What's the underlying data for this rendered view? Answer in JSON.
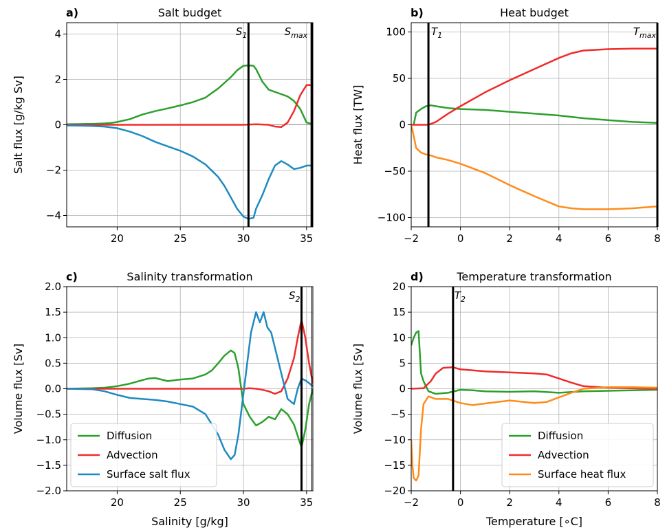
{
  "figure": {
    "panels": [
      {
        "letter": "a)",
        "title": "Salt budget",
        "ylabel": "Salt flux [g/kg Sv]",
        "xlabel": "",
        "vline_labels": [
          "S1",
          "Smax"
        ]
      },
      {
        "letter": "b)",
        "title": "Heat budget",
        "ylabel": "Heat flux [TW]",
        "xlabel": "",
        "vline_labels": [
          "T1",
          "Tmax"
        ]
      },
      {
        "letter": "c)",
        "title": "Salinity transformation",
        "ylabel": "Volume flux [Sv]",
        "xlabel": "Salinity [g/kg]",
        "vline_labels": [
          "S2"
        ]
      },
      {
        "letter": "d)",
        "title": "Temperature transformation",
        "ylabel": "Volume flux [Sv]",
        "xlabel": "Temperature [∘C]",
        "vline_labels": [
          "T2"
        ]
      }
    ]
  },
  "chart_data": [
    {
      "type": "line",
      "title": "Salt budget",
      "xlabel": "",
      "ylabel": "Salt flux [g/kg Sv]",
      "xlim": [
        16,
        35.5
      ],
      "ylim": [
        -4.5,
        4.5
      ],
      "xticks": [
        20,
        25,
        30,
        35
      ],
      "yticks": [
        -4,
        -2,
        0,
        2,
        4
      ],
      "grid": true,
      "vlines": [
        {
          "x": 30.4,
          "label": "S1"
        },
        {
          "x": 35.4,
          "label": "Smax"
        }
      ],
      "series": [
        {
          "name": "Diffusion",
          "color": "#2ca02c",
          "x": [
            16,
            17,
            18,
            19,
            19.5,
            20,
            21,
            22,
            23,
            24,
            25,
            26,
            27,
            28,
            28.5,
            29,
            29.5,
            30,
            30.4,
            30.8,
            31,
            31.5,
            32,
            33,
            33.5,
            34,
            34.5,
            35,
            35.5
          ],
          "y": [
            0.02,
            0.03,
            0.04,
            0.06,
            0.08,
            0.12,
            0.25,
            0.45,
            0.6,
            0.72,
            0.85,
            1.0,
            1.2,
            1.6,
            1.85,
            2.1,
            2.4,
            2.6,
            2.62,
            2.6,
            2.45,
            1.9,
            1.55,
            1.35,
            1.25,
            1.05,
            0.7,
            0.1,
            0.02
          ]
        },
        {
          "name": "Advection",
          "color": "#ef2b2b",
          "x": [
            16,
            20,
            25,
            30,
            31,
            32,
            32.5,
            33,
            33.5,
            34,
            34.5,
            35,
            35.5
          ],
          "y": [
            0,
            0,
            0,
            0,
            0.02,
            0,
            -0.08,
            -0.1,
            0.1,
            0.6,
            1.3,
            1.75,
            1.75
          ]
        },
        {
          "name": "Surface salt flux",
          "color": "#1f8ac0",
          "x": [
            16,
            17,
            18,
            19,
            20,
            21,
            22,
            23,
            24,
            25,
            26,
            27,
            28,
            28.5,
            29,
            29.5,
            30,
            30.4,
            30.8,
            31,
            31.5,
            32,
            32.5,
            33,
            33.5,
            34,
            34.5,
            35,
            35.5
          ],
          "y": [
            -0.03,
            -0.04,
            -0.05,
            -0.08,
            -0.15,
            -0.3,
            -0.5,
            -0.75,
            -0.95,
            -1.15,
            -1.4,
            -1.75,
            -2.3,
            -2.7,
            -3.2,
            -3.7,
            -4.05,
            -4.15,
            -4.1,
            -3.7,
            -3.1,
            -2.4,
            -1.8,
            -1.6,
            -1.75,
            -1.95,
            -1.9,
            -1.8,
            -1.8
          ]
        }
      ]
    },
    {
      "type": "line",
      "title": "Heat budget",
      "xlabel": "",
      "ylabel": "Heat flux [TW]",
      "xlim": [
        -2,
        8
      ],
      "ylim": [
        -110,
        110
      ],
      "xticks": [
        -2,
        0,
        2,
        4,
        6,
        8
      ],
      "yticks": [
        -100,
        -50,
        0,
        50,
        100
      ],
      "grid": true,
      "vlines": [
        {
          "x": -1.3,
          "label": "T1"
        },
        {
          "x": 8,
          "label": "Tmax"
        }
      ],
      "series": [
        {
          "name": "Diffusion",
          "color": "#2ca02c",
          "x": [
            -1.9,
            -1.8,
            -1.6,
            -1.4,
            -1.2,
            -1,
            -0.5,
            0,
            1,
            2,
            3,
            4,
            5,
            6,
            7,
            8
          ],
          "y": [
            0,
            13,
            17,
            20,
            21,
            20,
            18,
            17,
            16,
            14,
            12,
            10,
            7,
            5,
            3,
            2
          ]
        },
        {
          "name": "Advection",
          "color": "#ef2b2b",
          "x": [
            -2,
            -1.5,
            -1.3,
            -1,
            -0.5,
            0,
            1,
            2,
            3,
            4,
            4.5,
            5,
            6,
            7,
            8
          ],
          "y": [
            0,
            0,
            0,
            3,
            12,
            20,
            35,
            48,
            60,
            72,
            77,
            80,
            81.5,
            82,
            82
          ]
        },
        {
          "name": "Surface heat flux",
          "color": "#ff8c1a",
          "x": [
            -2,
            -1.9,
            -1.8,
            -1.6,
            -1.4,
            -1.2,
            -1,
            -0.5,
            0,
            1,
            2,
            3,
            4,
            4.5,
            5,
            6,
            7,
            8
          ],
          "y": [
            0,
            -12,
            -25,
            -30,
            -32,
            -33,
            -35,
            -38,
            -42,
            -52,
            -65,
            -77,
            -88,
            -90,
            -91,
            -91,
            -90,
            -88
          ]
        }
      ]
    },
    {
      "type": "line",
      "title": "Salinity transformation",
      "xlabel": "Salinity [g/kg]",
      "ylabel": "Volume flux [Sv]",
      "xlim": [
        16,
        35.5
      ],
      "ylim": [
        -2.0,
        2.0
      ],
      "xticks": [
        20,
        25,
        30,
        35
      ],
      "yticks": [
        -2.0,
        -1.5,
        -1.0,
        -0.5,
        0.0,
        0.5,
        1.0,
        1.5,
        2.0
      ],
      "grid": true,
      "legend": "lower-left",
      "vlines": [
        {
          "x": 34.6,
          "label": "S2"
        },
        {
          "x": 35.4,
          "label": ""
        }
      ],
      "series": [
        {
          "name": "Diffusion",
          "color": "#2ca02c",
          "x": [
            16,
            18,
            19,
            20,
            21,
            22,
            22.5,
            23,
            23.5,
            24,
            25,
            26,
            27,
            27.5,
            28,
            28.5,
            29,
            29.3,
            29.6,
            30,
            30.5,
            31,
            31.5,
            32,
            32.5,
            33,
            33.5,
            34,
            34.4,
            34.6,
            34.9,
            35.2,
            35.5
          ],
          "y": [
            0,
            0.01,
            0.02,
            0.05,
            0.1,
            0.17,
            0.2,
            0.21,
            0.18,
            0.15,
            0.18,
            0.2,
            0.28,
            0.36,
            0.5,
            0.65,
            0.75,
            0.7,
            0.4,
            -0.3,
            -0.55,
            -0.72,
            -0.65,
            -0.55,
            -0.6,
            -0.4,
            -0.5,
            -0.7,
            -1.0,
            -1.15,
            -0.8,
            -0.3,
            0
          ]
        },
        {
          "name": "Advection",
          "color": "#ef2b2b",
          "x": [
            16,
            20,
            25,
            30,
            30.5,
            31,
            31.5,
            32,
            32.5,
            33,
            33.5,
            34,
            34.3,
            34.6,
            34.9,
            35.2,
            35.5
          ],
          "y": [
            0,
            0,
            0,
            0,
            0.01,
            0,
            -0.02,
            -0.05,
            -0.1,
            -0.05,
            0.2,
            0.6,
            1.0,
            1.35,
            1.0,
            0.5,
            0.1
          ]
        },
        {
          "name": "Surface salt flux",
          "color": "#1f8ac0",
          "x": [
            16,
            18,
            19,
            20,
            21,
            22,
            23,
            24,
            25,
            26,
            27,
            27.5,
            28,
            28.5,
            29,
            29.3,
            29.6,
            30,
            30.3,
            30.6,
            31,
            31.3,
            31.6,
            31.9,
            32.2,
            32.5,
            33,
            33.5,
            34,
            34.3,
            34.6,
            35,
            35.5
          ],
          "y": [
            0,
            -0.01,
            -0.05,
            -0.12,
            -0.18,
            -0.2,
            -0.22,
            -0.25,
            -0.3,
            -0.35,
            -0.5,
            -0.7,
            -0.9,
            -1.2,
            -1.38,
            -1.3,
            -0.9,
            -0.1,
            0.5,
            1.1,
            1.5,
            1.3,
            1.5,
            1.2,
            1.1,
            0.8,
            0.3,
            -0.2,
            -0.3,
            0.0,
            0.2,
            0.15,
            0.05
          ]
        }
      ]
    },
    {
      "type": "line",
      "title": "Temperature transformation",
      "xlabel": "Temperature [∘C]",
      "ylabel": "Volume flux [Sv]",
      "xlim": [
        -2,
        8
      ],
      "ylim": [
        -20,
        20
      ],
      "xticks": [
        -2,
        0,
        2,
        4,
        6,
        8
      ],
      "yticks": [
        -20,
        -15,
        -10,
        -5,
        0,
        5,
        10,
        15,
        20
      ],
      "grid": true,
      "legend": "lower-right",
      "vlines": [
        {
          "x": -0.3,
          "label": "T2"
        }
      ],
      "series": [
        {
          "name": "Diffusion",
          "color": "#2ca02c",
          "x": [
            -2,
            -1.9,
            -1.8,
            -1.7,
            -1.6,
            -1.5,
            -1.3,
            -1,
            -0.5,
            0,
            0.5,
            1,
            2,
            3,
            4,
            5,
            6,
            7,
            8
          ],
          "y": [
            8.5,
            10,
            11,
            11.3,
            3,
            1.5,
            -0.5,
            -1,
            -0.8,
            -0.2,
            -0.3,
            -0.5,
            -0.6,
            -0.5,
            -0.8,
            -0.5,
            -0.4,
            -0.3,
            -0.2
          ]
        },
        {
          "name": "Advection",
          "color": "#ef2b2b",
          "x": [
            -2,
            -1.5,
            -1.2,
            -1,
            -0.7,
            -0.3,
            0,
            1,
            2,
            3,
            3.5,
            4,
            4.5,
            5,
            6,
            7,
            8
          ],
          "y": [
            0,
            0.1,
            1.5,
            3,
            4.1,
            4.2,
            3.8,
            3.4,
            3.2,
            3,
            2.8,
            2,
            1.2,
            0.5,
            0.2,
            0.1,
            0
          ]
        },
        {
          "name": "Surface heat flux",
          "color": "#ff8c1a",
          "x": [
            -2,
            -1.95,
            -1.9,
            -1.8,
            -1.7,
            -1.6,
            -1.5,
            -1.3,
            -1,
            -0.5,
            0,
            0.5,
            1,
            2,
            3,
            3.5,
            4,
            4.5,
            5,
            6,
            7,
            8
          ],
          "y": [
            -10,
            -15,
            -17.5,
            -18,
            -17,
            -8,
            -3,
            -1.5,
            -2,
            -2,
            -2.8,
            -3.2,
            -2.9,
            -2.3,
            -2.8,
            -2.6,
            -1.7,
            -0.8,
            0,
            0.3,
            0.3,
            0.2
          ]
        }
      ]
    }
  ]
}
